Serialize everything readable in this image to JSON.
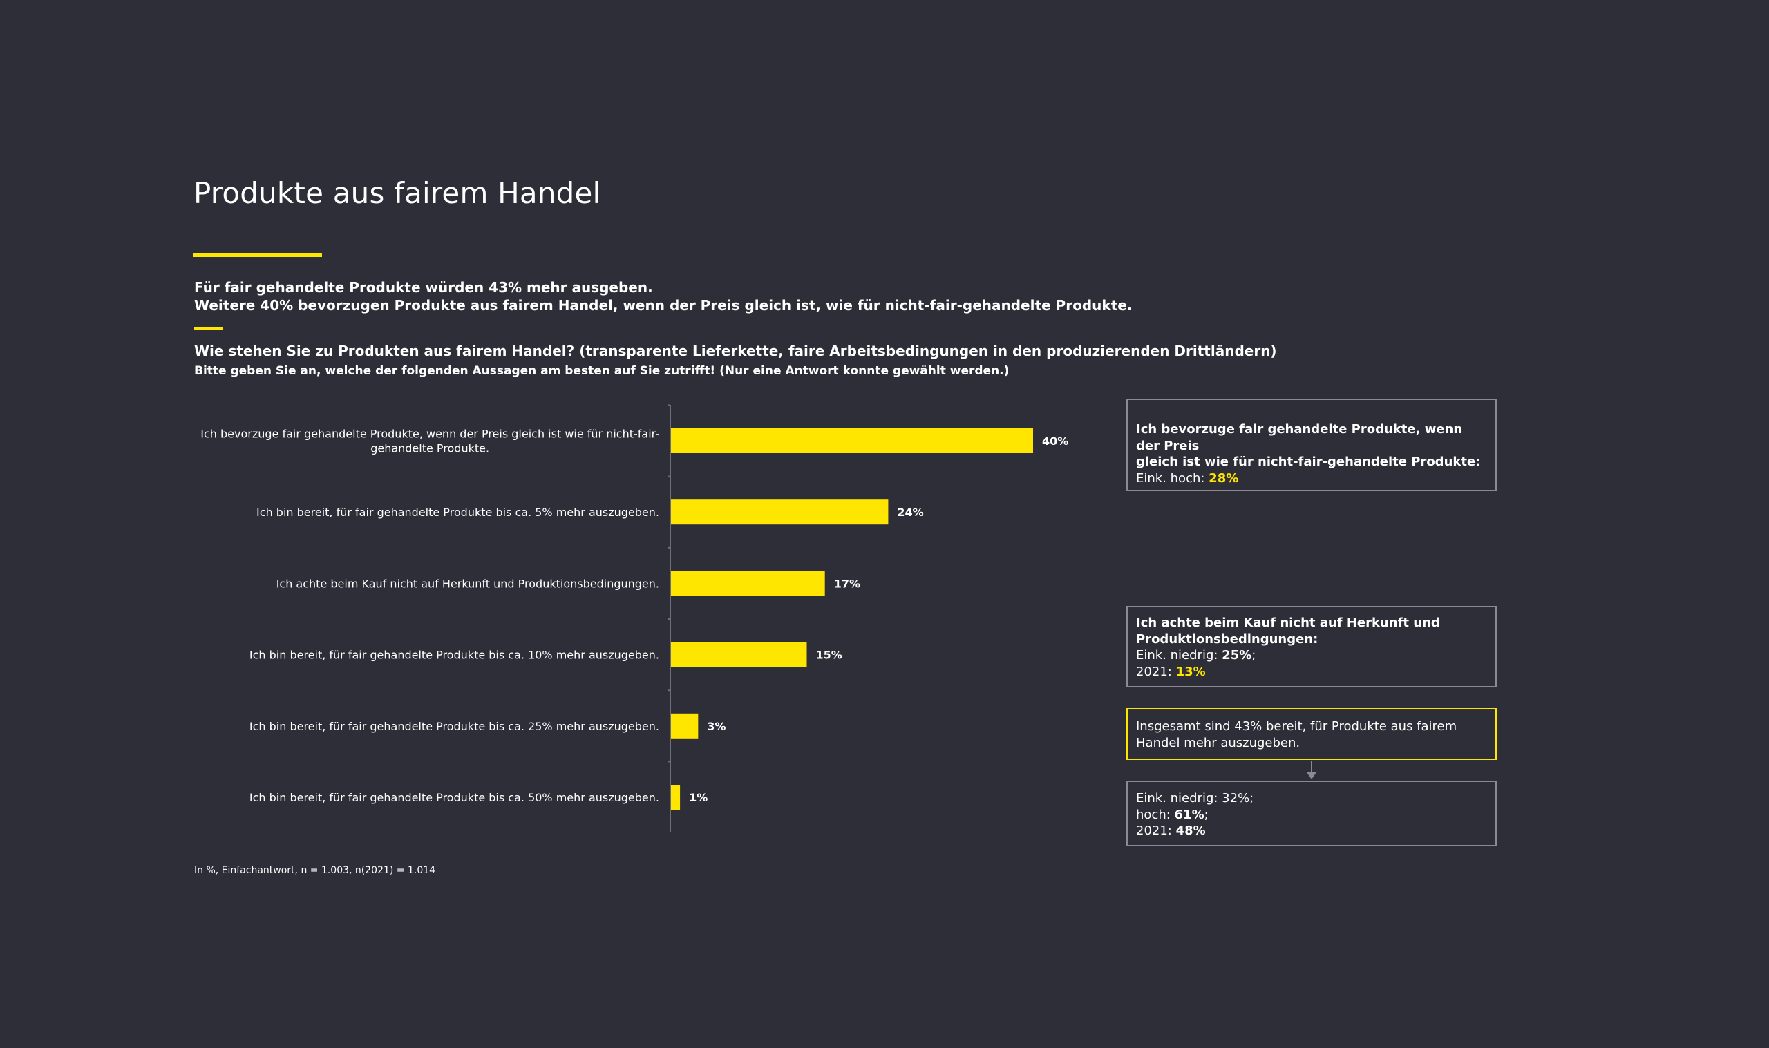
{
  "header": {
    "title": "Produkte aus fairem Handel",
    "summary_line1": "Für fair gehandelte Produkte würden 43% mehr ausgeben.",
    "summary_line2": "Weitere 40% bevorzugen Produkte aus fairem Handel, wenn der Preis gleich ist, wie für nicht-fair-gehandelte Produkte.",
    "question": "Wie stehen Sie zu Produkten aus fairem Handel? (transparente Lieferkette, faire Arbeitsbedingungen in den produzierenden Drittländern)",
    "instruction": "Bitte geben Sie an, welche der folgenden Aussagen am besten auf Sie zutrifft! (Nur eine Antwort konnte gewählt werden.)"
  },
  "footnote": "In %, Einfachantwort, n = 1.003, n(2021) = 1.014",
  "colors": {
    "background": "#2e2e38",
    "bar": "#ffe600",
    "axis": "#6e6e78",
    "box_border": "#8a8a94",
    "highlight": "#ffe600"
  },
  "chart_data": {
    "type": "bar",
    "orientation": "horizontal",
    "categories": [
      [
        "Ich bevorzuge fair gehandelte Produkte, wenn der Preis gleich ist wie für nicht-fair-",
        "gehandelte Produkte."
      ],
      [
        "Ich bin bereit, für fair gehandelte Produkte bis ca. 5% mehr auszugeben."
      ],
      [
        "Ich achte beim Kauf nicht auf Herkunft und Produktionsbedingungen."
      ],
      [
        "Ich bin bereit, für fair gehandelte Produkte bis ca. 10% mehr auszugeben."
      ],
      [
        "Ich bin bereit, für fair gehandelte Produkte bis ca. 25% mehr auszugeben."
      ],
      [
        "Ich bin bereit, für fair gehandelte Produkte bis ca. 50% mehr auszugeben."
      ]
    ],
    "values": [
      40,
      24,
      17,
      15,
      3,
      1
    ],
    "value_labels": [
      "40%",
      "24%",
      "17%",
      "15%",
      "3%",
      "1%"
    ],
    "xlim": [
      0,
      100
    ],
    "grid": false,
    "legend": "none"
  },
  "callouts": {
    "box1": {
      "line1": "Ich bevorzuge fair gehandelte Produkte, wenn der Preis",
      "line2": "gleich ist wie für nicht-fair-gehandelte Produkte:",
      "prefix": "Eink. hoch: ",
      "value": "28%"
    },
    "box2": {
      "line1": "Ich achte beim Kauf nicht auf Herkunft und",
      "line2": "Produktionsbedingungen:",
      "row1_prefix": "Eink. niedrig: ",
      "row1_value": "25%",
      "row1_suffix": ";",
      "row2_prefix": "2021: ",
      "row2_value": "13%"
    },
    "box3": {
      "line1": "Insgesamt sind 43% bereit, für Produkte aus fairem",
      "line2": "Handel mehr auszugeben."
    },
    "box4": {
      "row1": "Eink. niedrig: 32%;",
      "row2_prefix": "hoch: ",
      "row2_value": "61%",
      "row2_suffix": ";",
      "row3_prefix": "2021: ",
      "row3_value": "48%"
    }
  }
}
